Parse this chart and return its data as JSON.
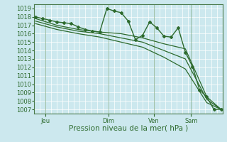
{
  "background_color": "#cce8ee",
  "plot_bg_color": "#cce8ee",
  "grid_color": "#ffffff",
  "line_color": "#2d6a2d",
  "xlabel": "Pression niveau de la mer( hPa )",
  "xlabel_fontsize": 7.5,
  "ylim": [
    1006.5,
    1019.5
  ],
  "yticks": [
    1007,
    1008,
    1009,
    1010,
    1011,
    1012,
    1013,
    1014,
    1015,
    1016,
    1017,
    1018,
    1019
  ],
  "xtick_labels": [
    "Jeu",
    "Dim",
    "Ven",
    "Sam"
  ],
  "xtick_positions": [
    8,
    52,
    84,
    110
  ],
  "xlim": [
    0,
    132
  ],
  "series1_x": [
    1,
    6,
    11,
    16,
    21,
    26,
    31,
    36,
    41,
    46,
    51,
    56,
    61,
    66,
    71,
    76,
    81,
    86,
    91,
    96,
    101,
    106,
    111,
    116,
    121,
    126,
    131
  ],
  "series1_y": [
    1018.0,
    1017.8,
    1017.6,
    1017.4,
    1017.3,
    1017.2,
    1016.8,
    1016.5,
    1016.3,
    1016.2,
    1019.0,
    1018.7,
    1018.5,
    1017.5,
    1015.3,
    1015.8,
    1017.4,
    1016.7,
    1015.7,
    1015.6,
    1016.7,
    1013.8,
    1012.1,
    1009.3,
    1008.5,
    1007.0,
    1007.0
  ],
  "series2_x": [
    1,
    16,
    31,
    46,
    61,
    76,
    91,
    106,
    121,
    131
  ],
  "series2_y": [
    1017.8,
    1017.0,
    1016.5,
    1016.2,
    1016.0,
    1015.5,
    1014.8,
    1014.2,
    1008.5,
    1007.0
  ],
  "series3_x": [
    1,
    16,
    31,
    46,
    61,
    76,
    91,
    106,
    121,
    131
  ],
  "series3_y": [
    1017.5,
    1016.8,
    1016.3,
    1016.0,
    1015.5,
    1015.0,
    1014.0,
    1013.0,
    1008.2,
    1007.0
  ],
  "series4_x": [
    1,
    16,
    31,
    46,
    61,
    76,
    91,
    106,
    121,
    131
  ],
  "series4_y": [
    1017.2,
    1016.5,
    1016.0,
    1015.6,
    1015.0,
    1014.4,
    1013.2,
    1011.8,
    1007.8,
    1007.0
  ]
}
